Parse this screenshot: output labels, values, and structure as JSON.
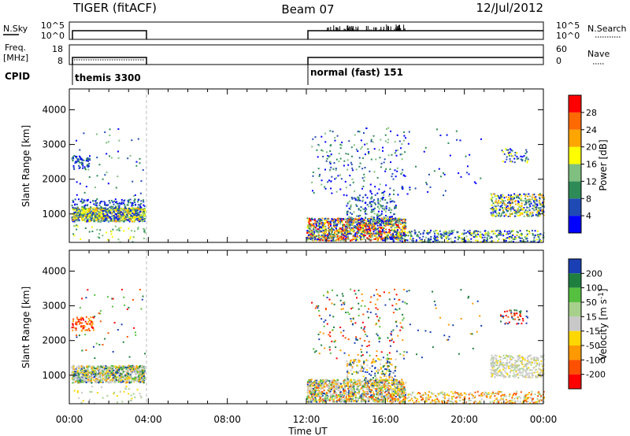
{
  "header": {
    "title": "TIGER (fitACF)",
    "beam": "Beam 07",
    "date": "12/Jul/2012"
  },
  "status_panels": {
    "nsky_label": "N.Sky",
    "nsearch_label": "N.Search",
    "nsky_ticks": [
      "10^5",
      "10^0"
    ],
    "nsearch_ticks": [
      "10^5",
      "10^0"
    ],
    "freq_label_1": "Freq.",
    "freq_label_2": "[MHz]",
    "freq_ticks": [
      "18",
      "8"
    ],
    "nave_label": "Nave",
    "nave_ticks": [
      "60",
      "0"
    ],
    "cpid_label": "CPID",
    "cpid_segments": [
      {
        "start_hour": 0,
        "end_hour": 3.8,
        "text": "themis 3300"
      },
      {
        "start_hour": 12,
        "end_hour": 24,
        "text": "normal (fast) 151"
      }
    ]
  },
  "chart_data": [
    {
      "type": "heatmap",
      "name": "power",
      "xlabel": "Time UT",
      "ylabel": "Slant Range [km]",
      "x_ticks": [
        "00:00",
        "04:00",
        "08:00",
        "12:00",
        "16:00",
        "20:00",
        "00:00"
      ],
      "y_ticks": [
        1000,
        2000,
        3000,
        4000
      ],
      "xlim": [
        0,
        24
      ],
      "ylim": [
        180,
        4600
      ],
      "colorbar_label": "Power [dB]",
      "colorbar_ticks": [
        4,
        8,
        12,
        16,
        20,
        24,
        28
      ],
      "colorbar_range": [
        0,
        32
      ],
      "colors": [
        "#0000ff",
        "#1f4ab4",
        "#2e8b57",
        "#7fbf7f",
        "#ffff00",
        "#ffa500",
        "#ff6a00",
        "#ff0000"
      ],
      "data_segments": [
        {
          "start_hour": 0,
          "end_hour": 3.8
        },
        {
          "start_hour": 12,
          "end_hour": 24
        }
      ]
    },
    {
      "type": "heatmap",
      "name": "velocity",
      "xlabel": "Time UT",
      "ylabel": "Slant Range [km]",
      "x_ticks": [
        "00:00",
        "04:00",
        "08:00",
        "12:00",
        "16:00",
        "20:00",
        "00:00"
      ],
      "y_ticks": [
        1000,
        2000,
        3000,
        4000
      ],
      "xlim": [
        0,
        24
      ],
      "ylim": [
        180,
        4600
      ],
      "colorbar_label": "Velocity [m s",
      "colorbar_label_sup": "-1",
      "colorbar_label_end": "]",
      "colorbar_ticks": [
        "200",
        "100",
        "50",
        "15",
        "-15",
        "-50",
        "-100",
        "-200"
      ],
      "colors": [
        "#1a3fb4",
        "#1f7f3f",
        "#55c040",
        "#a6d08c",
        "#c8c8c8",
        "#ffd700",
        "#ff9900",
        "#ff5000",
        "#ff0000"
      ]
    }
  ]
}
